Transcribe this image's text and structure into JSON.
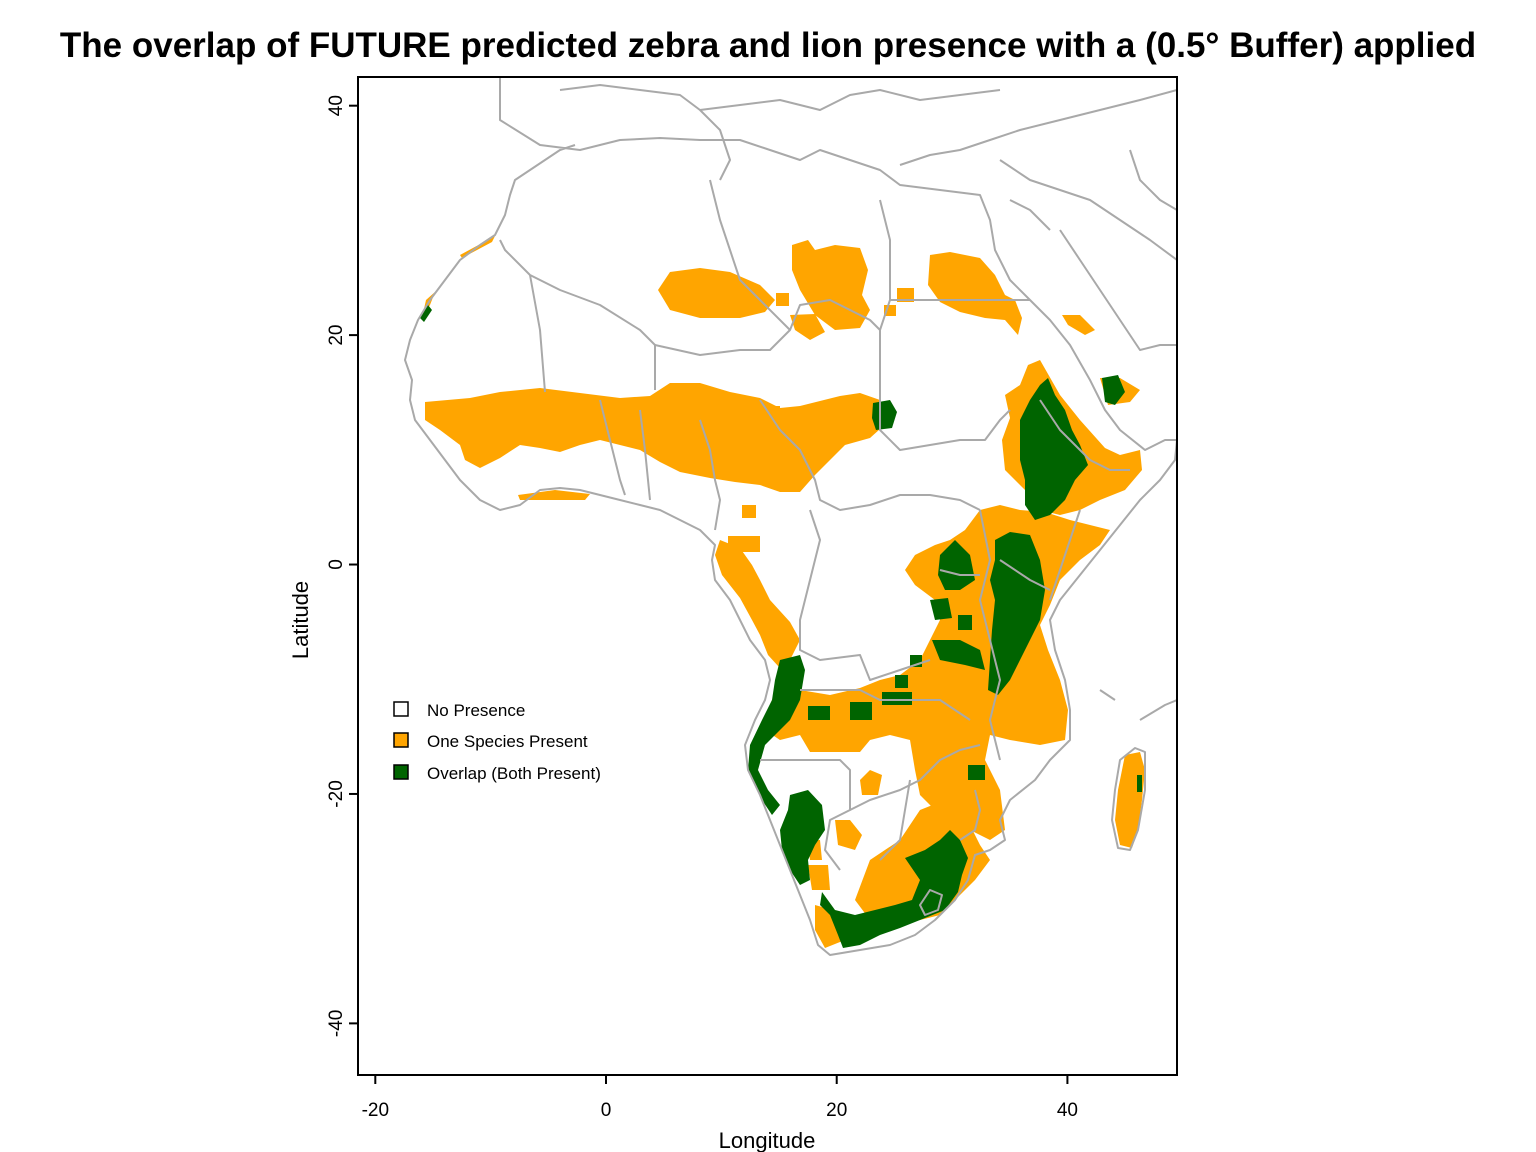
{
  "title": "The overlap of FUTURE predicted zebra and lion presence with a (0.5° Buffer) applied",
  "axes": {
    "xlabel": "Longitude",
    "ylabel": "Latitude",
    "xticks": [
      -20,
      0,
      20,
      40
    ],
    "yticks": [
      40,
      20,
      0,
      -20,
      -40
    ],
    "xlim": [
      -21.5,
      49.5
    ],
    "ylim": [
      -44.5,
      42.5
    ]
  },
  "legend": {
    "placement": "left-middle",
    "items": [
      {
        "label": "No Presence",
        "color": "#ffffff"
      },
      {
        "label": "One Species Present",
        "color": "#ffa500"
      },
      {
        "label": "Overlap (Both Present)",
        "color": "#006400"
      }
    ]
  },
  "colors": {
    "one_species": "#ffa500",
    "overlap": "#006400",
    "border": "#a9a9a9"
  }
}
